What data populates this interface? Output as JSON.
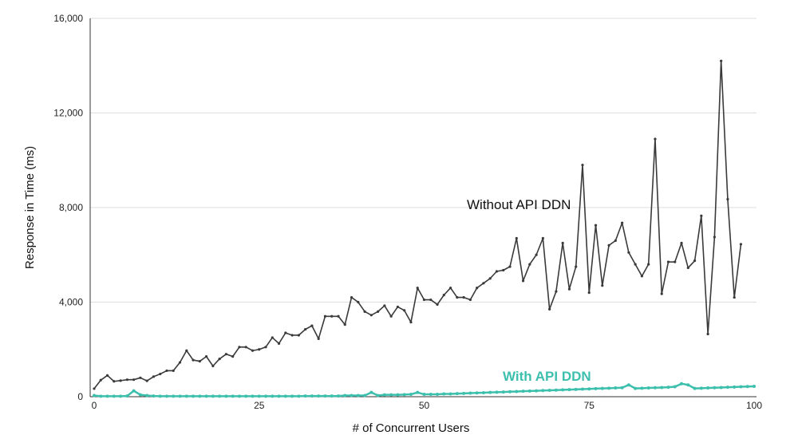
{
  "chart_data": {
    "type": "line",
    "title": "",
    "xlabel": "# of Concurrent Users",
    "ylabel": "Response in Time (ms)",
    "xlim": [
      0,
      100
    ],
    "ylim": [
      0,
      16000
    ],
    "x_ticks": [
      0,
      25,
      50,
      75,
      100
    ],
    "y_ticks": [
      0,
      4000,
      8000,
      12000,
      16000
    ],
    "x_tick_labels": [
      "0",
      "25",
      "50",
      "75",
      "100"
    ],
    "y_tick_labels": [
      "0",
      "4,000",
      "8,000",
      "12,000",
      "16,000"
    ],
    "grid": "horizontal",
    "series": [
      {
        "name": "Without API DDN",
        "color": "#3a3a3a",
        "values": [
          340,
          700,
          900,
          650,
          680,
          720,
          720,
          800,
          670,
          850,
          960,
          1100,
          1100,
          1450,
          1950,
          1550,
          1500,
          1700,
          1300,
          1600,
          1800,
          1700,
          2100,
          2100,
          1950,
          2000,
          2100,
          2500,
          2250,
          2700,
          2600,
          2600,
          2850,
          3000,
          2450,
          3400,
          3400,
          3400,
          3050,
          4200,
          4000,
          3600,
          3450,
          3600,
          3850,
          3400,
          3800,
          3650,
          3150,
          4600,
          4100,
          4100,
          3900,
          4300,
          4600,
          4200,
          4200,
          4100,
          4600,
          4800,
          5000,
          5300,
          5350,
          5500,
          6700,
          4900,
          5600,
          6000,
          6700,
          3700,
          4450,
          6500,
          4550,
          5500,
          9800,
          4400,
          7250,
          4700,
          6400,
          6600,
          7350,
          6100,
          5600,
          5100,
          5600,
          10900,
          4350,
          5700,
          5700,
          6500,
          5450,
          5750,
          7650,
          2650,
          6750,
          14200,
          8350,
          4200,
          6450
        ]
      },
      {
        "name": "With API DDN",
        "color": "#3dbfad",
        "values": [
          50,
          20,
          20,
          20,
          20,
          30,
          250,
          80,
          50,
          30,
          20,
          20,
          20,
          20,
          20,
          20,
          20,
          20,
          20,
          20,
          20,
          20,
          20,
          20,
          20,
          20,
          20,
          20,
          20,
          20,
          20,
          20,
          30,
          30,
          30,
          30,
          30,
          30,
          50,
          50,
          50,
          50,
          180,
          50,
          80,
          80,
          80,
          90,
          100,
          180,
          100,
          100,
          100,
          120,
          120,
          130,
          140,
          150,
          160,
          170,
          180,
          190,
          200,
          210,
          220,
          230,
          240,
          250,
          260,
          270,
          280,
          290,
          300,
          310,
          320,
          330,
          340,
          350,
          360,
          370,
          380,
          500,
          350,
          360,
          370,
          380,
          390,
          400,
          420,
          550,
          500,
          350,
          360,
          370,
          380,
          390,
          400,
          410,
          420,
          430,
          440
        ]
      }
    ],
    "annotations": [
      "Without API DDN",
      "With API DDN"
    ]
  }
}
